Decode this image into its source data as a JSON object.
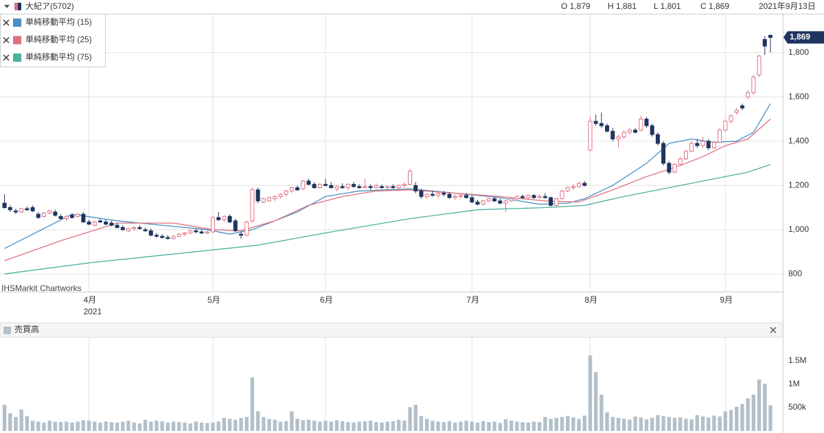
{
  "header": {
    "symbol": "大紀ア(5702)",
    "open": "O 1,879",
    "high": "H 1,881",
    "low": "L 1,801",
    "close": "C 1,869",
    "date": "2021年9月13日",
    "watermark": "IHSMarkit Chartworks"
  },
  "chart_data": [
    {
      "type": "candlestick",
      "up_color": "#e07080",
      "down_color": "#1f3560",
      "grid": true,
      "xlim": [
        -0.8,
        138.2
      ],
      "xticks": [
        {
          "value": 15,
          "label": "4月"
        },
        {
          "value": 37,
          "label": "5月"
        },
        {
          "value": 57,
          "label": "6月"
        },
        {
          "value": 83,
          "label": "7月"
        },
        {
          "value": 104,
          "label": "8月"
        },
        {
          "value": 128,
          "label": "9月"
        }
      ],
      "xlabel_year": "2021",
      "ylim": [
        720,
        1970
      ],
      "yticks": [
        800,
        {
          "value": 1000,
          "label": "1,000"
        },
        {
          "value": 1200,
          "label": "1,200"
        },
        {
          "value": 1400,
          "label": "1,400"
        },
        {
          "value": 1600,
          "label": "1,600"
        },
        {
          "value": 1800,
          "label": "1,800"
        }
      ],
      "last_price": {
        "value": 1869,
        "label": "1,869"
      },
      "candles": [
        [
          1120,
          1160,
          1095,
          1100
        ],
        [
          1100,
          1110,
          1080,
          1090
        ],
        [
          1085,
          1095,
          1070,
          1080
        ],
        [
          1080,
          1100,
          1075,
          1095
        ],
        [
          1095,
          1105,
          1085,
          1090
        ],
        [
          1100,
          1110,
          1080,
          1085
        ],
        [
          1070,
          1080,
          1050,
          1055
        ],
        [
          1060,
          1080,
          1055,
          1075
        ],
        [
          1075,
          1090,
          1070,
          1085
        ],
        [
          1080,
          1090,
          1060,
          1065
        ],
        [
          1060,
          1070,
          1045,
          1050
        ],
        [
          1050,
          1065,
          1040,
          1060
        ],
        [
          1065,
          1075,
          1050,
          1055
        ],
        [
          1060,
          1075,
          1055,
          1070
        ],
        [
          1070,
          1080,
          1030,
          1035
        ],
        [
          1035,
          1045,
          1020,
          1025
        ],
        [
          1020,
          1040,
          1015,
          1035
        ],
        [
          1040,
          1050,
          1030,
          1035
        ],
        [
          1035,
          1045,
          1020,
          1025
        ],
        [
          1030,
          1040,
          1015,
          1020
        ],
        [
          1020,
          1030,
          1005,
          1010
        ],
        [
          1010,
          1020,
          995,
          1000
        ],
        [
          995,
          1010,
          990,
          1005
        ],
        [
          1005,
          1015,
          995,
          1010
        ],
        [
          1010,
          1020,
          1000,
          1005
        ],
        [
          1000,
          1010,
          990,
          995
        ],
        [
          995,
          1005,
          970,
          975
        ],
        [
          975,
          985,
          965,
          970
        ],
        [
          970,
          980,
          960,
          965
        ],
        [
          965,
          975,
          955,
          960
        ],
        [
          960,
          975,
          955,
          970
        ],
        [
          970,
          985,
          965,
          980
        ],
        [
          980,
          990,
          970,
          985
        ],
        [
          985,
          1000,
          980,
          995
        ],
        [
          995,
          1005,
          985,
          990
        ],
        [
          990,
          1000,
          980,
          985
        ],
        [
          985,
          995,
          980,
          990
        ],
        [
          990,
          1060,
          985,
          1055
        ],
        [
          1055,
          1080,
          1040,
          1045
        ],
        [
          1045,
          1065,
          1035,
          1060
        ],
        [
          1060,
          1070,
          1030,
          1035
        ],
        [
          1040,
          1050,
          990,
          995
        ],
        [
          980,
          990,
          960,
          975
        ],
        [
          975,
          1040,
          970,
          1035
        ],
        [
          1040,
          1190,
          1030,
          1180
        ],
        [
          1180,
          1190,
          1120,
          1130
        ],
        [
          1125,
          1145,
          1120,
          1140
        ],
        [
          1130,
          1150,
          1125,
          1145
        ],
        [
          1140,
          1155,
          1130,
          1150
        ],
        [
          1150,
          1165,
          1140,
          1160
        ],
        [
          1160,
          1180,
          1150,
          1175
        ],
        [
          1175,
          1195,
          1165,
          1190
        ],
        [
          1190,
          1200,
          1175,
          1180
        ],
        [
          1185,
          1225,
          1180,
          1220
        ],
        [
          1220,
          1230,
          1200,
          1205
        ],
        [
          1205,
          1215,
          1185,
          1190
        ],
        [
          1190,
          1210,
          1185,
          1205
        ],
        [
          1205,
          1230,
          1195,
          1200
        ],
        [
          1200,
          1215,
          1185,
          1190
        ],
        [
          1185,
          1200,
          1175,
          1195
        ],
        [
          1195,
          1210,
          1185,
          1190
        ],
        [
          1190,
          1210,
          1180,
          1205
        ],
        [
          1205,
          1215,
          1190,
          1195
        ],
        [
          1195,
          1205,
          1185,
          1190
        ],
        [
          1190,
          1230,
          1185,
          1195
        ],
        [
          1195,
          1205,
          1180,
          1190
        ],
        [
          1190,
          1210,
          1185,
          1200
        ],
        [
          1195,
          1205,
          1185,
          1190
        ],
        [
          1190,
          1200,
          1180,
          1195
        ],
        [
          1195,
          1205,
          1185,
          1190
        ],
        [
          1190,
          1205,
          1180,
          1200
        ],
        [
          1200,
          1215,
          1190,
          1205
        ],
        [
          1205,
          1275,
          1200,
          1265
        ],
        [
          1200,
          1215,
          1165,
          1175
        ],
        [
          1175,
          1185,
          1140,
          1150
        ],
        [
          1150,
          1165,
          1140,
          1160
        ],
        [
          1160,
          1175,
          1150,
          1155
        ],
        [
          1155,
          1170,
          1145,
          1165
        ],
        [
          1165,
          1175,
          1150,
          1160
        ],
        [
          1160,
          1170,
          1140,
          1145
        ],
        [
          1145,
          1160,
          1135,
          1150
        ],
        [
          1150,
          1165,
          1140,
          1155
        ],
        [
          1155,
          1165,
          1140,
          1145
        ],
        [
          1145,
          1155,
          1120,
          1125
        ],
        [
          1125,
          1135,
          1110,
          1115
        ],
        [
          1115,
          1135,
          1110,
          1130
        ],
        [
          1130,
          1145,
          1125,
          1140
        ],
        [
          1140,
          1150,
          1125,
          1130
        ],
        [
          1130,
          1140,
          1115,
          1120
        ],
        [
          1120,
          1135,
          1080,
          1130
        ],
        [
          1130,
          1145,
          1125,
          1140
        ],
        [
          1140,
          1155,
          1135,
          1150
        ],
        [
          1150,
          1160,
          1140,
          1145
        ],
        [
          1145,
          1160,
          1140,
          1155
        ],
        [
          1155,
          1160,
          1140,
          1145
        ],
        [
          1145,
          1160,
          1140,
          1150
        ],
        [
          1150,
          1165,
          1140,
          1145
        ],
        [
          1145,
          1150,
          1105,
          1110
        ],
        [
          1110,
          1145,
          1105,
          1140
        ],
        [
          1140,
          1180,
          1135,
          1175
        ],
        [
          1175,
          1195,
          1170,
          1190
        ],
        [
          1190,
          1205,
          1180,
          1195
        ],
        [
          1195,
          1215,
          1190,
          1210
        ],
        [
          1210,
          1220,
          1195,
          1200
        ],
        [
          1360,
          1510,
          1355,
          1490
        ],
        [
          1490,
          1520,
          1470,
          1480
        ],
        [
          1480,
          1530,
          1460,
          1470
        ],
        [
          1470,
          1480,
          1440,
          1445
        ],
        [
          1445,
          1460,
          1400,
          1410
        ],
        [
          1410,
          1430,
          1370,
          1420
        ],
        [
          1420,
          1450,
          1410,
          1440
        ],
        [
          1440,
          1460,
          1430,
          1450
        ],
        [
          1450,
          1460,
          1435,
          1440
        ],
        [
          1450,
          1515,
          1445,
          1500
        ],
        [
          1500,
          1510,
          1460,
          1470
        ],
        [
          1470,
          1480,
          1420,
          1430
        ],
        [
          1430,
          1440,
          1380,
          1390
        ],
        [
          1390,
          1400,
          1290,
          1300
        ],
        [
          1300,
          1310,
          1250,
          1260
        ],
        [
          1260,
          1300,
          1255,
          1295
        ],
        [
          1295,
          1330,
          1290,
          1320
        ],
        [
          1320,
          1360,
          1315,
          1355
        ],
        [
          1355,
          1400,
          1350,
          1390
        ],
        [
          1390,
          1410,
          1370,
          1380
        ],
        [
          1380,
          1420,
          1370,
          1400
        ],
        [
          1400,
          1410,
          1360,
          1370
        ],
        [
          1370,
          1400,
          1365,
          1395
        ],
        [
          1395,
          1460,
          1390,
          1450
        ],
        [
          1450,
          1500,
          1445,
          1490
        ],
        [
          1490,
          1520,
          1480,
          1515
        ],
        [
          1530,
          1550,
          1520,
          1540
        ],
        [
          1560,
          1570,
          1540,
          1550
        ],
        [
          1600,
          1630,
          1590,
          1620
        ],
        [
          1620,
          1700,
          1610,
          1690
        ],
        [
          1700,
          1790,
          1690,
          1785
        ],
        [
          1860,
          1875,
          1790,
          1830
        ],
        [
          1879,
          1881,
          1801,
          1869
        ]
      ],
      "series": [
        {
          "name": "単純移動平均 (15)",
          "color": "#4a8fc2",
          "x": [
            0,
            12,
            20,
            36,
            40,
            44,
            52,
            57,
            63,
            72,
            78,
            88,
            95,
            100,
            103,
            108,
            114,
            118,
            122,
            126,
            130,
            133,
            136
          ],
          "values": [
            915,
            1070,
            1040,
            1000,
            980,
            1000,
            1080,
            1150,
            1175,
            1185,
            1170,
            1145,
            1115,
            1120,
            1140,
            1200,
            1300,
            1390,
            1410,
            1395,
            1400,
            1440,
            1570
          ]
        },
        {
          "name": "単純移動平均 (25)",
          "color": "#e0707e",
          "x": [
            0,
            10,
            20,
            30,
            37,
            42,
            48,
            54,
            60,
            66,
            72,
            80,
            88,
            96,
            102,
            108,
            114,
            120,
            124,
            128,
            132,
            136
          ],
          "values": [
            860,
            950,
            1030,
            1030,
            1000,
            995,
            1040,
            1110,
            1150,
            1175,
            1180,
            1165,
            1150,
            1130,
            1125,
            1180,
            1240,
            1290,
            1330,
            1380,
            1410,
            1500
          ]
        },
        {
          "name": "単純移動平均 (75)",
          "color": "#4ab0a0",
          "x": [
            0,
            15,
            30,
            45,
            58,
            72,
            84,
            96,
            103,
            110,
            118,
            126,
            132,
            136
          ],
          "values": [
            800,
            850,
            890,
            930,
            990,
            1050,
            1090,
            1100,
            1110,
            1150,
            1190,
            1230,
            1260,
            1295
          ]
        }
      ]
    },
    {
      "type": "bar",
      "title": "売買高",
      "color": "#b3c0ca",
      "ylim": [
        0,
        2000000
      ],
      "yticks": [
        {
          "value": 500000,
          "label": "500k"
        },
        {
          "value": 1000000,
          "label": "1M"
        },
        {
          "value": 1500000,
          "label": "1.5M"
        }
      ],
      "values": [
        560000,
        380000,
        300000,
        460000,
        320000,
        220000,
        200000,
        180000,
        220000,
        200000,
        190000,
        200000,
        180000,
        200000,
        230000,
        220000,
        200000,
        180000,
        200000,
        190000,
        180000,
        200000,
        220000,
        180000,
        160000,
        240000,
        200000,
        220000,
        210000,
        180000,
        200000,
        190000,
        180000,
        160000,
        200000,
        180000,
        170000,
        180000,
        200000,
        280000,
        260000,
        240000,
        280000,
        300000,
        1150000,
        420000,
        300000,
        260000,
        240000,
        200000,
        210000,
        420000,
        260000,
        230000,
        240000,
        220000,
        200000,
        220000,
        200000,
        230000,
        210000,
        190000,
        180000,
        200000,
        210000,
        220000,
        190000,
        180000,
        200000,
        210000,
        240000,
        220000,
        510000,
        560000,
        320000,
        260000,
        220000,
        200000,
        190000,
        210000,
        180000,
        200000,
        220000,
        200000,
        180000,
        210000,
        190000,
        200000,
        170000,
        250000,
        220000,
        200000,
        190000,
        180000,
        200000,
        190000,
        300000,
        260000,
        280000,
        300000,
        320000,
        290000,
        260000,
        330000,
        1620000,
        1260000,
        780000,
        400000,
        300000,
        280000,
        260000,
        240000,
        310000,
        290000,
        250000,
        280000,
        340000,
        320000,
        300000,
        280000,
        290000,
        260000,
        250000,
        340000,
        310000,
        290000,
        330000,
        310000,
        420000,
        450000,
        520000,
        580000,
        700000,
        780000,
        1100000,
        1010000,
        550000
      ]
    }
  ]
}
